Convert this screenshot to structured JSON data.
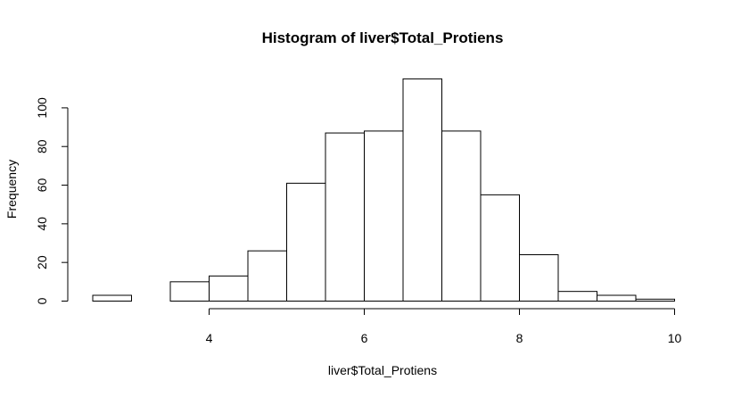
{
  "chart_data": {
    "type": "bar",
    "title": "Histogram of liver$Total_Protiens",
    "xlabel": "liver$Total_Protiens",
    "ylabel": "Frequency",
    "bins": [
      {
        "start": 2.5,
        "end": 3.0,
        "count": 3
      },
      {
        "start": 3.0,
        "end": 3.5,
        "count": 0
      },
      {
        "start": 3.5,
        "end": 4.0,
        "count": 10
      },
      {
        "start": 4.0,
        "end": 4.5,
        "count": 13
      },
      {
        "start": 4.5,
        "end": 5.0,
        "count": 26
      },
      {
        "start": 5.0,
        "end": 5.5,
        "count": 61
      },
      {
        "start": 5.5,
        "end": 6.0,
        "count": 87
      },
      {
        "start": 6.0,
        "end": 6.5,
        "count": 88
      },
      {
        "start": 6.5,
        "end": 7.0,
        "count": 115
      },
      {
        "start": 7.0,
        "end": 7.5,
        "count": 88
      },
      {
        "start": 7.5,
        "end": 8.0,
        "count": 55
      },
      {
        "start": 8.0,
        "end": 8.5,
        "count": 24
      },
      {
        "start": 8.5,
        "end": 9.0,
        "count": 5
      },
      {
        "start": 9.0,
        "end": 9.5,
        "count": 3
      },
      {
        "start": 9.5,
        "end": 10.0,
        "count": 1
      }
    ],
    "xlim": [
      2.5,
      10
    ],
    "ylim": [
      0,
      115
    ],
    "x_ticks": [
      "4",
      "6",
      "8",
      "10"
    ],
    "y_ticks": [
      "0",
      "20",
      "40",
      "60",
      "80",
      "100"
    ],
    "grid": false,
    "colors": {
      "bar_fill": "#ffffff",
      "bar_stroke": "#000000"
    }
  }
}
